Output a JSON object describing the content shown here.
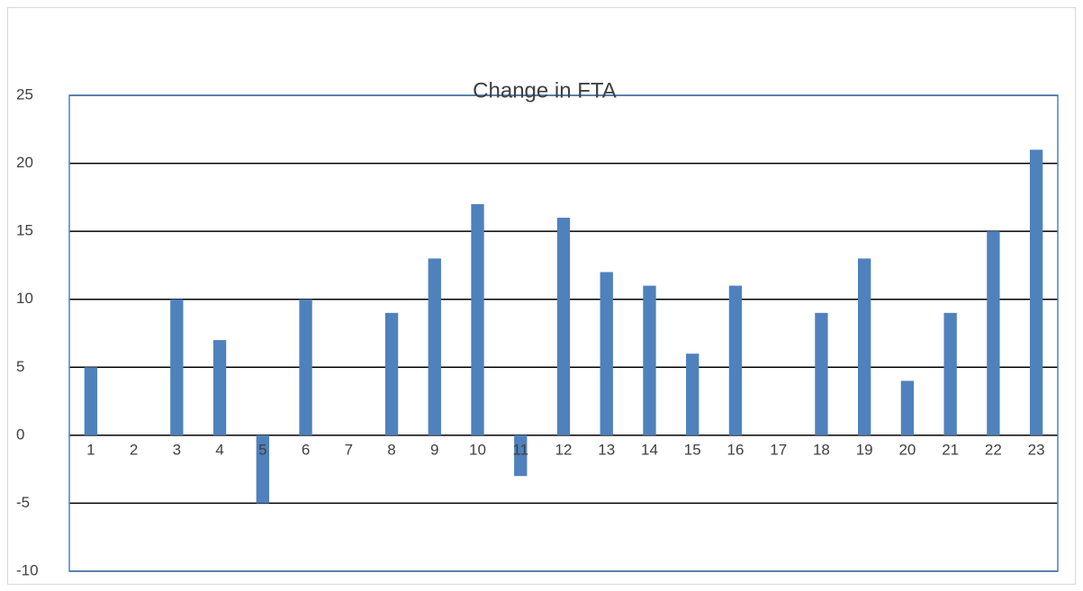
{
  "chart_data": {
    "type": "bar",
    "title": "Change in FTA",
    "categories": [
      "1",
      "2",
      "3",
      "4",
      "5",
      "6",
      "7",
      "8",
      "9",
      "10",
      "11",
      "12",
      "13",
      "14",
      "15",
      "16",
      "17",
      "18",
      "19",
      "20",
      "21",
      "22",
      "23"
    ],
    "values": [
      5,
      0,
      10,
      7,
      -5,
      10,
      0,
      9,
      13,
      17,
      -3,
      16,
      12,
      11,
      6,
      11,
      0,
      9,
      13,
      4,
      9,
      15,
      21
    ],
    "color": "#4f81bd",
    "ylim": [
      -10,
      25
    ],
    "yticks": [
      -10,
      -5,
      0,
      5,
      10,
      15,
      20,
      25
    ],
    "grid": true
  }
}
